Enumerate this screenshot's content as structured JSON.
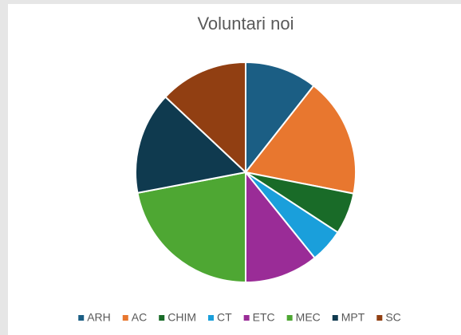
{
  "chart_data": {
    "type": "pie",
    "title": "Voluntari noi",
    "categories": [
      "ARH",
      "AC",
      "CHIM",
      "CT",
      "ETC",
      "MEC",
      "MPT",
      "SC"
    ],
    "values": [
      10.6,
      17.5,
      6.1,
      5,
      10.8,
      22,
      15,
      13
    ],
    "colors": [
      "#1b5e84",
      "#e8772f",
      "#196b28",
      "#1a9fdb",
      "#9a2c97",
      "#4ea733",
      "#0f3a4f",
      "#913f12"
    ],
    "legend": "bottom"
  }
}
